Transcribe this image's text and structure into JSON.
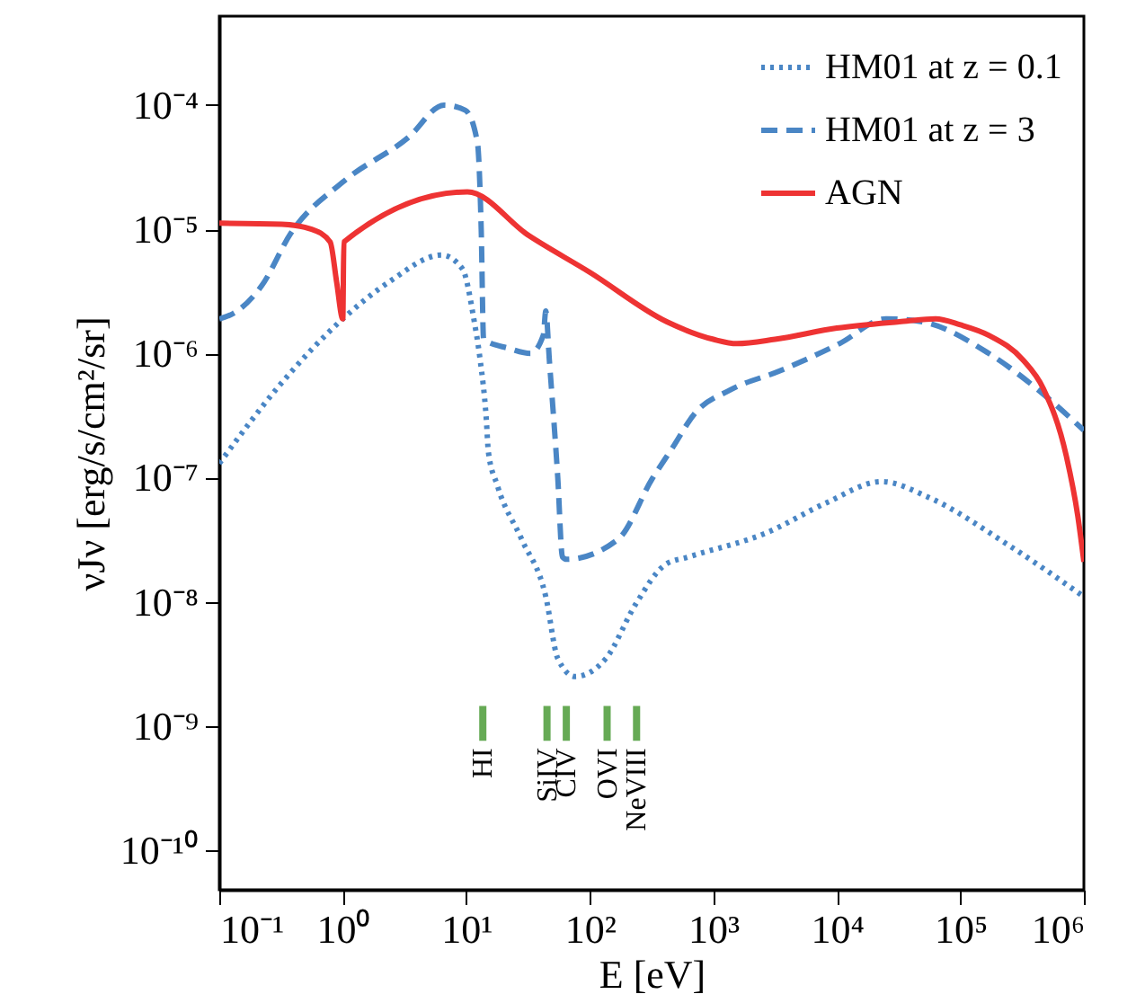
{
  "chart_data": {
    "type": "line",
    "xlabel": "E [eV]",
    "ylabel": "νJν [erg/s/cm²/sr]",
    "log": "xy",
    "grid": false,
    "legend": "top right",
    "xlim": [
      0.1,
      1000000
    ],
    "ylim": [
      4.8e-11,
      0.00052
    ],
    "xticks": [
      {
        "value": 0.1,
        "label": "10⁻¹"
      },
      {
        "value": 1,
        "label": "10⁰"
      },
      {
        "value": 10,
        "label": "10¹"
      },
      {
        "value": 100,
        "label": "10²"
      },
      {
        "value": 1000,
        "label": "10³"
      },
      {
        "value": 10000,
        "label": "10⁴"
      },
      {
        "value": 100000,
        "label": "10⁵"
      },
      {
        "value": 1000000,
        "label": "10⁶"
      }
    ],
    "yticks": [
      {
        "value": 1e-10,
        "label": "10⁻¹⁰"
      },
      {
        "value": 1e-09,
        "label": "10⁻⁹"
      },
      {
        "value": 1e-08,
        "label": "10⁻⁸"
      },
      {
        "value": 1e-07,
        "label": "10⁻⁷"
      },
      {
        "value": 1e-06,
        "label": "10⁻⁶"
      },
      {
        "value": 1e-05,
        "label": "10⁻⁵"
      },
      {
        "value": 0.0001,
        "label": "10⁻⁴"
      }
    ],
    "series": [
      {
        "name": "HM01 at z = 0.1",
        "color": "#4a86c5",
        "line_style": "dotted",
        "x": [
          0.1,
          0.32,
          1.0,
          2.4,
          6.3,
          9.3,
          11.5,
          12.9,
          14.5,
          15.1,
          17.8,
          28,
          44,
          55,
          76,
          135,
          234,
          410,
          630,
          2700,
          8300,
          23000,
          56000,
          240000,
          1000000
        ],
        "values": [
          1.3e-07,
          5.8e-07,
          1.9e-06,
          3.8e-06,
          6.2e-06,
          4.8e-06,
          1.9e-06,
          9.1e-07,
          3e-07,
          1.6e-07,
          8.7e-08,
          3.2e-08,
          1.1e-08,
          3.5e-09,
          2.5e-09,
          3.5e-09,
          9.5e-09,
          2e-08,
          2.3e-08,
          3.6e-08,
          6.3e-08,
          9.3e-08,
          6.9e-08,
          2.9e-08,
          1.1e-08
        ]
      },
      {
        "name": "HM01 at z = 3",
        "color": "#4a86c5",
        "line_style": "dashed",
        "x": [
          0.1,
          0.13,
          0.22,
          0.38,
          1.0,
          3.4,
          6.6,
          9.8,
          12.3,
          13.2,
          13.8,
          22,
          33,
          42,
          44,
          47,
          55,
          60,
          65,
          170,
          320,
          460,
          710,
          1380,
          3400,
          10500,
          25000,
          49000,
          170000,
          470000,
          1000000
        ],
        "values": [
          1.9e-06,
          2.1e-06,
          3.5e-06,
          9.3e-06,
          2.4e-05,
          5.5e-05,
          0.0001,
          9.1e-05,
          5e-05,
          1e-05,
          1.3e-06,
          1.1e-06,
          1e-06,
          1.4e-06,
          2.2e-06,
          8.9e-07,
          1e-07,
          2.3e-08,
          2.2e-08,
          3.2e-08,
          9.8e-08,
          1.7e-07,
          3.3e-07,
          5.1e-07,
          7.2e-07,
          1.2e-06,
          1.9e-06,
          1.8e-06,
          1e-06,
          4.7e-07,
          2.4e-07
        ]
      },
      {
        "name": "AGN",
        "color": "#ee3333",
        "line_style": "solid",
        "x": [
          0.1,
          0.32,
          0.56,
          0.79,
          0.89,
          1.0,
          1.02,
          10.2,
          32,
          100,
          420,
          1000,
          1550,
          3160,
          10000,
          32000,
          63000,
          100000,
          170000,
          320000,
          470000,
          720000,
          890000,
          1000000
        ],
        "values": [
          1.12e-05,
          1.1e-05,
          1e-05,
          7.9e-06,
          3.8e-06,
          1.9e-06,
          7.9e-06,
          2e-05,
          8.9e-06,
          4.5e-06,
          1.8e-06,
          1.3e-06,
          1.2e-06,
          1.3e-06,
          1.6e-06,
          1.8e-06,
          1.9e-06,
          1.7e-06,
          1.4e-06,
          8.9e-07,
          5.2e-07,
          1.5e-07,
          5e-08,
          2.1e-08
        ]
      },
      {
        "type": "bar",
        "color": "#66aa55",
        "x": [
          13.6,
          45,
          64.5,
          138,
          239
        ],
        "base": [
          7.6e-10,
          7.6e-10,
          7.6e-10,
          7.6e-10,
          7.6e-10
        ],
        "values": [
          6.9e-10,
          6.9e-10,
          6.9e-10,
          6.9e-10,
          6.9e-10
        ],
        "value_labels": [
          "HI",
          "SiIV",
          "CIV",
          "OVI",
          "NeVIII"
        ]
      }
    ]
  }
}
